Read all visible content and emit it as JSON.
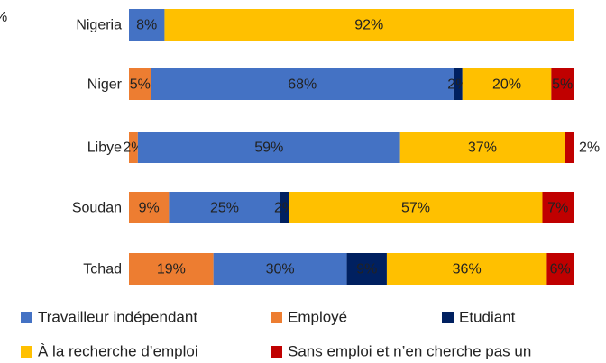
{
  "chart_data": {
    "type": "stacked-bar-horizontal",
    "annotation": "%",
    "categories": [
      "Nigeria",
      "Niger",
      "Libye",
      "Soudan",
      "Tchad"
    ],
    "total": 100,
    "series": [
      {
        "name": "Employé",
        "color": "#ed7d31",
        "label_color": "#333333",
        "values": [
          null,
          5,
          2,
          9,
          19
        ],
        "value_labels": [
          null,
          "5%",
          "2%",
          "9%",
          "19%"
        ]
      },
      {
        "name": "Travailleur indépendant",
        "color": "#4472c4",
        "label_color": "#e8ecf5",
        "values": [
          8,
          68,
          59,
          25,
          30
        ],
        "value_labels": [
          "8%",
          "68%",
          "59%",
          "25%",
          "30%"
        ]
      },
      {
        "name": "Etudiant",
        "color": "#002060",
        "label_color": "#ffffff",
        "values": [
          null,
          2,
          null,
          2,
          9
        ],
        "value_labels": [
          null,
          "2%",
          null,
          "2%",
          "9%"
        ]
      },
      {
        "name": "À la recherche d’emploi",
        "color": "#ffc000",
        "label_color": "#333333",
        "values": [
          92,
          20,
          37,
          57,
          36
        ],
        "value_labels": [
          "92%",
          "20%",
          "37%",
          "57%",
          "36%"
        ]
      },
      {
        "name": "Sans emploi et n’en cherche pas un",
        "color": "#c00000",
        "label_color": "#ffffff",
        "values": [
          null,
          5,
          2,
          7,
          6
        ],
        "value_labels": [
          null,
          "5%",
          "2%",
          "7%",
          "6%"
        ]
      }
    ]
  }
}
